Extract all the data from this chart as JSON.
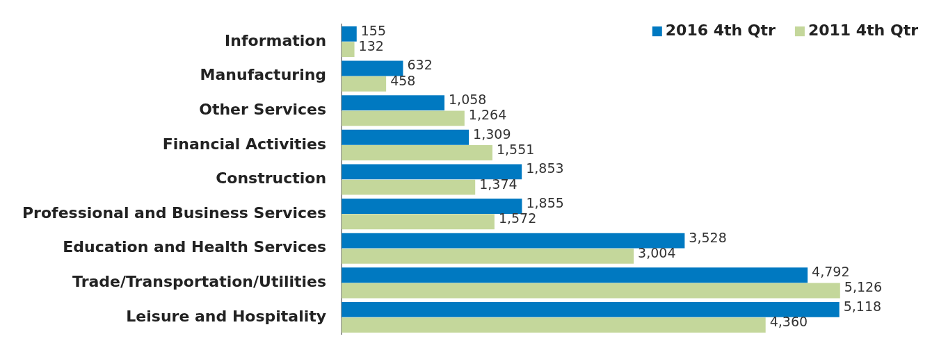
{
  "chart_data": {
    "type": "bar",
    "orientation": "horizontal",
    "categories": [
      "Information",
      "Manufacturing",
      "Other Services",
      "Financial Activities",
      "Construction",
      "Professional and Business Services",
      "Education and Health Services",
      "Trade/Transportation/Utilities",
      "Leisure and Hospitality"
    ],
    "series": [
      {
        "name": "2016 4th Qtr",
        "color": "#0079c1",
        "values": [
          155,
          632,
          1058,
          1309,
          1853,
          1855,
          3528,
          4792,
          5118
        ],
        "value_labels": [
          "155",
          "632",
          "1,058",
          "1,309",
          "1,853",
          "1,855",
          "3,528",
          "4,792",
          "5,118"
        ]
      },
      {
        "name": "2011 4th Qtr",
        "color": "#c4d79b",
        "values": [
          132,
          458,
          1264,
          1551,
          1374,
          1572,
          3004,
          5126,
          4360
        ],
        "value_labels": [
          "132",
          "458",
          "1,264",
          "1,551",
          "1,374",
          "1,572",
          "3,004",
          "5,126",
          "4,360"
        ]
      }
    ],
    "legend": "top right"
  }
}
